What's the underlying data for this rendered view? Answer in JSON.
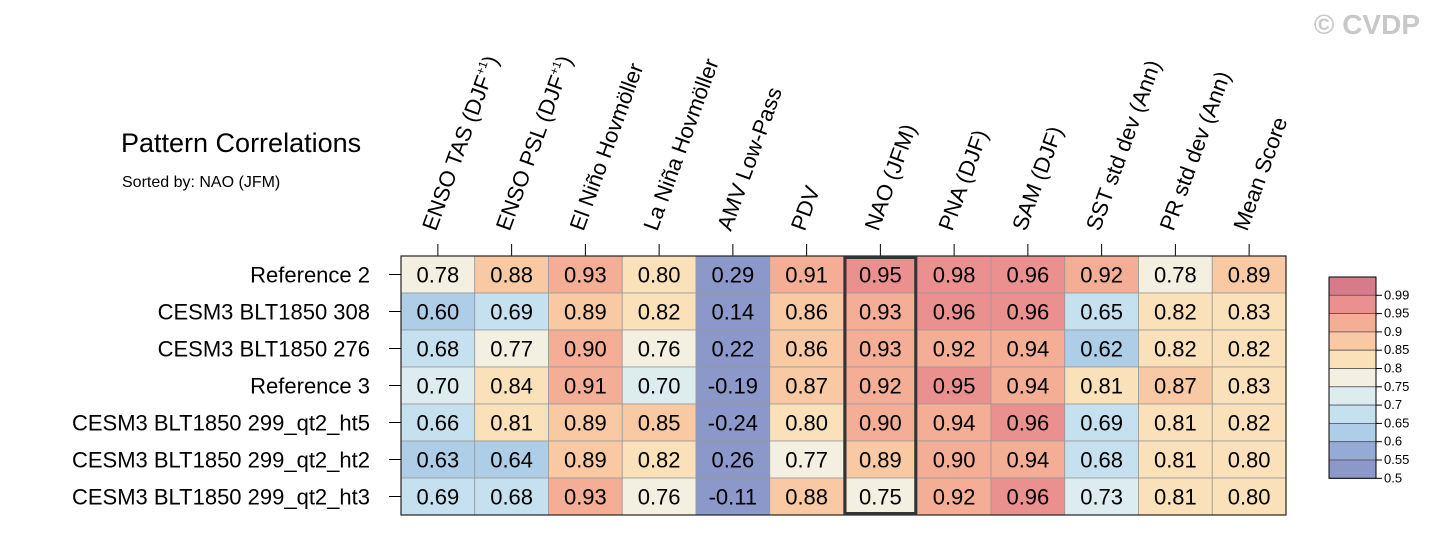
{
  "watermark": "© CVDP",
  "chart_data": {
    "type": "heatmap",
    "title": "Pattern Correlations",
    "subtitle": "Sorted by: NAO (JFM)",
    "columns": [
      {
        "label": "ENSO TAS (DJF",
        "sup": "+1",
        "suffix": ")"
      },
      {
        "label": "ENSO PSL (DJF",
        "sup": "+1",
        "suffix": ")"
      },
      {
        "label": "El Niño Hovmöller"
      },
      {
        "label": "La Niña Hovmöller"
      },
      {
        "label": "AMV Low-Pass"
      },
      {
        "label": "PDV"
      },
      {
        "label": "NAO (JFM)"
      },
      {
        "label": "PNA (DJF)"
      },
      {
        "label": "SAM (DJF)"
      },
      {
        "label": "SST std dev (Ann)"
      },
      {
        "label": "PR std dev (Ann)"
      },
      {
        "label": "Mean Score"
      }
    ],
    "rows": [
      "Reference 2",
      "CESM3 BLT1850 308",
      "CESM3 BLT1850 276",
      "Reference 3",
      "CESM3 BLT1850 299_qt2_ht5",
      "CESM3 BLT1850 299_qt2_ht2",
      "CESM3 BLT1850 299_qt2_ht3"
    ],
    "values": [
      [
        "0.78",
        "0.88",
        "0.93",
        "0.80",
        "0.29",
        "0.91",
        "0.95",
        "0.98",
        "0.96",
        "0.92",
        "0.78",
        "0.89"
      ],
      [
        "0.60",
        "0.69",
        "0.89",
        "0.82",
        "0.14",
        "0.86",
        "0.93",
        "0.96",
        "0.96",
        "0.65",
        "0.82",
        "0.83"
      ],
      [
        "0.68",
        "0.77",
        "0.90",
        "0.76",
        "0.22",
        "0.86",
        "0.93",
        "0.92",
        "0.94",
        "0.62",
        "0.82",
        "0.82"
      ],
      [
        "0.70",
        "0.84",
        "0.91",
        "0.70",
        "-0.19",
        "0.87",
        "0.92",
        "0.95",
        "0.94",
        "0.81",
        "0.87",
        "0.83"
      ],
      [
        "0.66",
        "0.81",
        "0.89",
        "0.85",
        "-0.24",
        "0.80",
        "0.90",
        "0.94",
        "0.96",
        "0.69",
        "0.81",
        "0.82"
      ],
      [
        "0.63",
        "0.64",
        "0.89",
        "0.82",
        "0.26",
        "0.77",
        "0.89",
        "0.90",
        "0.94",
        "0.68",
        "0.81",
        "0.80"
      ],
      [
        "0.69",
        "0.68",
        "0.93",
        "0.76",
        "-0.11",
        "0.88",
        "0.75",
        "0.92",
        "0.96",
        "0.73",
        "0.81",
        "0.80"
      ]
    ],
    "highlighted_column": "NAO (JFM)",
    "colorbar": {
      "levels": [
        "0.99",
        "0.95",
        "0.9",
        "0.85",
        "0.8",
        "0.75",
        "0.7",
        "0.65",
        "0.6",
        "0.55",
        "0.5"
      ],
      "colors": [
        "#d77b8b",
        "#ea9190",
        "#f4ae96",
        "#f8c9a2",
        "#fbe1b9",
        "#f3f0e1",
        "#dcecef",
        "#c5e0ee",
        "#aecde6",
        "#94abd5",
        "#8b98c9"
      ]
    }
  }
}
